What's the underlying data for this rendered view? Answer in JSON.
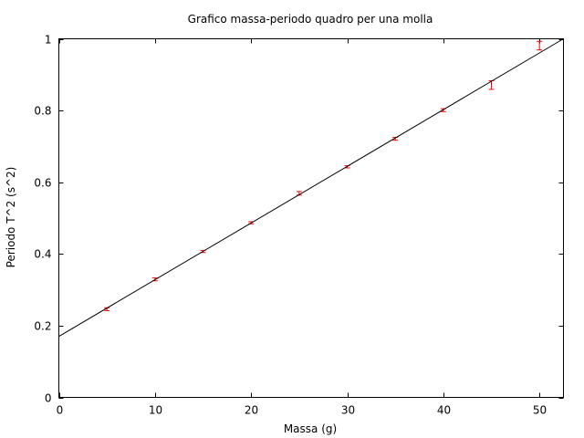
{
  "chart_data": {
    "type": "scatter",
    "title": "Grafico massa-periodo quadro per una molla",
    "xlabel": "Massa (g)",
    "ylabel": "Periodo T^2 (s^2)",
    "xlim": [
      0,
      52.5
    ],
    "ylim": [
      0,
      1
    ],
    "x_ticks": [
      0,
      10,
      20,
      30,
      40,
      50
    ],
    "y_ticks": [
      0,
      0.2,
      0.4,
      0.6,
      0.8,
      1
    ],
    "x_tick_labels": [
      "0",
      "10",
      "20",
      "30",
      "40",
      "50"
    ],
    "y_tick_labels": [
      "0",
      "0.2",
      "0.4",
      "0.6",
      "0.8",
      "1"
    ],
    "grid": false,
    "series": [
      {
        "type": "errorbar",
        "color": "#ff0000",
        "x": [
          5,
          10,
          15,
          20,
          25,
          30,
          35,
          40,
          45,
          50
        ],
        "y": [
          0.246,
          0.329,
          0.407,
          0.487,
          0.569,
          0.643,
          0.721,
          0.801,
          0.871,
          0.981
        ],
        "yerr": [
          0.004,
          0.004,
          0.003,
          0.003,
          0.005,
          0.003,
          0.004,
          0.004,
          0.012,
          0.012
        ]
      },
      {
        "type": "line",
        "color": "#000000",
        "x": [
          0,
          52.5
        ],
        "y": [
          0.17,
          1.0
        ]
      }
    ]
  }
}
